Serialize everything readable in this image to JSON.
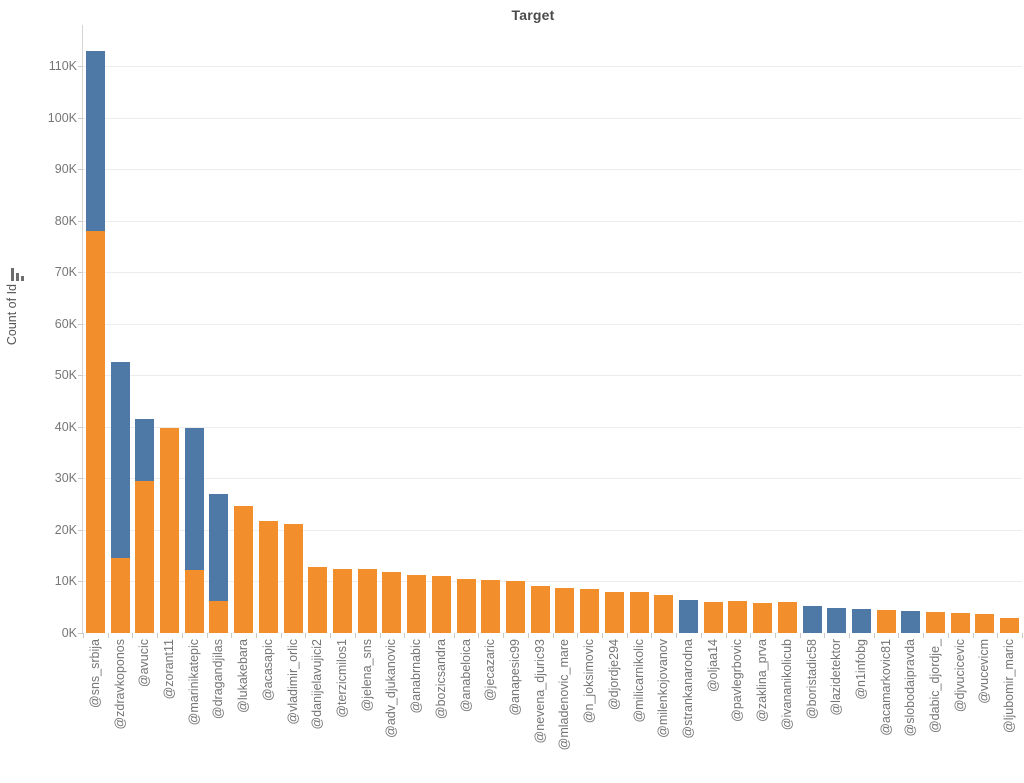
{
  "title": {
    "text": "Target"
  },
  "y_axis": {
    "label": "Count of Id",
    "sort_icon": "sort-descending-bars-icon",
    "tick_labels": [
      "0K",
      "10K",
      "20K",
      "30K",
      "40K",
      "50K",
      "60K",
      "70K",
      "80K",
      "90K",
      "100K",
      "110K"
    ]
  },
  "chart_data": {
    "type": "bar",
    "stacked": true,
    "title": "Target",
    "xlabel": "",
    "ylabel": "Count of Id",
    "unit": "thousands (K)",
    "ylim_k": [
      0,
      118
    ],
    "grid": true,
    "legend": "none",
    "categories": [
      "@sns_srbija",
      "@zdravkoponos",
      "@avucic",
      "@zorant11",
      "@marinikatepic",
      "@dragandjilas",
      "@lukakebara",
      "@acasapic",
      "@vladimir_orlic",
      "@danijelavujici2",
      "@terzicmilos1",
      "@jelena_sns",
      "@adv_djukanovic",
      "@anabrnabic",
      "@bozicsandra",
      "@anabeloica",
      "@jecazaric",
      "@anapesic99",
      "@nevena_djuric93",
      "@mladenovic_mare",
      "@n_joksimovic",
      "@djordje294",
      "@milicarnikolic",
      "@milenkojovanov",
      "@strankanarodna",
      "@oljaa14",
      "@pavlegrbovic",
      "@zaklina_prva",
      "@ivananikolicub",
      "@boristadic58",
      "@lazidetektor",
      "@n1infobg",
      "@acamarkovic81",
      "@slobodaipravda",
      "@dabic_djordje_",
      "@djvucicevic",
      "@vucevicm",
      "@ljubomir_maric"
    ],
    "series": [
      {
        "name": "orange-segment",
        "color": "#f28e2b",
        "values_k": [
          78,
          14.5,
          29.5,
          39.7,
          12.3,
          6.3,
          24.7,
          21.7,
          21.2,
          12.9,
          12.5,
          12.5,
          11.8,
          11.3,
          11.0,
          10.4,
          10.3,
          10.0,
          9.1,
          8.8,
          8.5,
          8.0,
          7.9,
          7.4,
          0,
          6.1,
          6.2,
          5.9,
          6.0,
          0,
          0,
          0,
          4.5,
          0,
          4.1,
          3.8,
          3.7,
          3.0
        ]
      },
      {
        "name": "blue-segment",
        "color": "#4e79a7",
        "values_k": [
          35,
          38,
          12,
          0,
          27.5,
          20.7,
          0,
          0,
          0,
          0,
          0,
          0,
          0,
          0,
          0,
          0,
          0,
          0,
          0,
          0,
          0,
          0,
          0,
          0,
          6.4,
          0,
          0,
          0,
          0,
          5.3,
          4.8,
          4.7,
          0,
          4.2,
          0,
          0,
          0,
          0
        ]
      }
    ]
  },
  "colors": {
    "orange": "#f28e2b",
    "blue": "#4e79a7",
    "gridline": "#ededed",
    "axis_line": "#d4d4d4",
    "tick_mark": "#c9c9c9",
    "muted_text": "#767676",
    "title_text": "#4b4b4b"
  }
}
